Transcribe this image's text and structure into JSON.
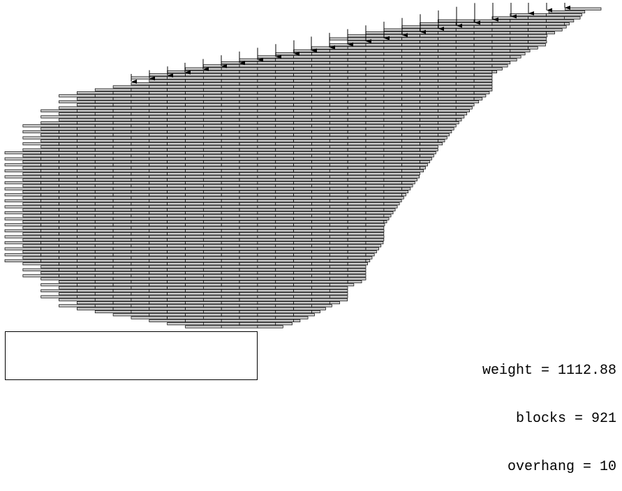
{
  "diagram": {
    "type": "block-stacking-overhang",
    "block_fill": "#cccccc",
    "block_stroke": "#000000",
    "base_stroke": "#000000",
    "arrow_color": "#000000"
  },
  "stats": {
    "weight": "weight = 1112.88",
    "blocks": "blocks = 921",
    "overhang": "overhang = 10"
  }
}
